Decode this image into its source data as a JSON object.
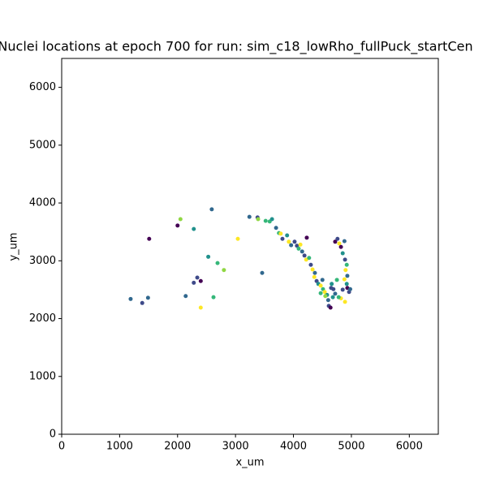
{
  "chart_data": {
    "type": "scatter",
    "title": "Nuclei locations at epoch 700 for run: sim_c18_lowRho_fullPuck_startCen",
    "xlabel": "x_um",
    "ylabel": "y_um",
    "xlim": [
      0,
      6500
    ],
    "ylim": [
      0,
      6500
    ],
    "xticks": [
      0,
      1000,
      2000,
      3000,
      4000,
      5000,
      6000
    ],
    "yticks": [
      0,
      1000,
      2000,
      3000,
      4000,
      5000,
      6000
    ],
    "grid": false,
    "x": [
      1190,
      1390,
      1490,
      1510,
      2000,
      2050,
      2280,
      2590,
      2140,
      2280,
      2340,
      2400,
      2400,
      2530,
      2620,
      2690,
      2800,
      3040,
      3240,
      3380,
      3390,
      3460,
      3520,
      3590,
      3630,
      3700,
      3750,
      3780,
      3810,
      3890,
      3920,
      3960,
      4020,
      4060,
      4090,
      4120,
      4150,
      4190,
      4230,
      4220,
      4270,
      4300,
      4330,
      4370,
      4360,
      4400,
      4430,
      4470,
      4500,
      4510,
      4540,
      4580,
      4600,
      4610,
      4640,
      4660,
      4690,
      4720,
      4750,
      4720,
      4760,
      4790,
      4820,
      4880,
      4850,
      4890,
      4920,
      4900,
      4930,
      4880,
      4920,
      4930,
      4960,
      4850,
      4820,
      4780,
      4680,
      4650,
      4550,
      4470,
      4980,
      4890
    ],
    "y": [
      2340,
      2270,
      2360,
      3380,
      3610,
      3720,
      3550,
      3890,
      2390,
      2620,
      2710,
      2650,
      2190,
      3070,
      2370,
      2960,
      2840,
      3380,
      3760,
      3750,
      3720,
      2790,
      3690,
      3680,
      3720,
      3570,
      3480,
      3470,
      3380,
      3440,
      3330,
      3270,
      3330,
      3260,
      3210,
      3280,
      3160,
      3090,
      3400,
      3020,
      3050,
      2930,
      2850,
      2790,
      2720,
      2650,
      2600,
      2570,
      2670,
      2510,
      2460,
      2410,
      2320,
      2220,
      2190,
      2600,
      2510,
      2430,
      2670,
      3330,
      3380,
      3300,
      3240,
      3340,
      3130,
      3020,
      2930,
      2840,
      2740,
      2680,
      2600,
      2530,
      2460,
      2500,
      2350,
      2370,
      2370,
      2530,
      2390,
      2440,
      2510,
      2290
    ],
    "colors": [
      "#31688e",
      "#3e4a89",
      "#31688e",
      "#440154",
      "#440154",
      "#90d743",
      "#21918c",
      "#31688e",
      "#31688e",
      "#3e4a89",
      "#3e4a89",
      "#440154",
      "#fde725",
      "#21918c",
      "#35b779",
      "#35b779",
      "#90d743",
      "#fde725",
      "#31688e",
      "#3e4a89",
      "#90d743",
      "#31688e",
      "#35b779",
      "#35b779",
      "#21918c",
      "#31688e",
      "#35b779",
      "#fde725",
      "#3e4a89",
      "#21918c",
      "#fde725",
      "#31688e",
      "#3e4a89",
      "#3e4a89",
      "#35b779",
      "#fde725",
      "#31688e",
      "#3e4a89",
      "#440154",
      "#fde725",
      "#35b779",
      "#3e4a89",
      "#fde725",
      "#31688e",
      "#fde725",
      "#3e4a89",
      "#21918c",
      "#fde725",
      "#31688e",
      "#35b779",
      "#fde725",
      "#21918c",
      "#31688e",
      "#3e4a89",
      "#440154",
      "#21918c",
      "#3e4a89",
      "#31688e",
      "#35b779",
      "#440154",
      "#3e4a89",
      "#fde725",
      "#440154",
      "#31688e",
      "#21918c",
      "#3e4a89",
      "#35b779",
      "#fde725",
      "#31688e",
      "#fde725",
      "#21918c",
      "#440154",
      "#3e4a89",
      "#3e4a89",
      "#fde725",
      "#35b779",
      "#21918c",
      "#3e4a89",
      "#90d743",
      "#35b779",
      "#31688e",
      "#fde725"
    ]
  }
}
